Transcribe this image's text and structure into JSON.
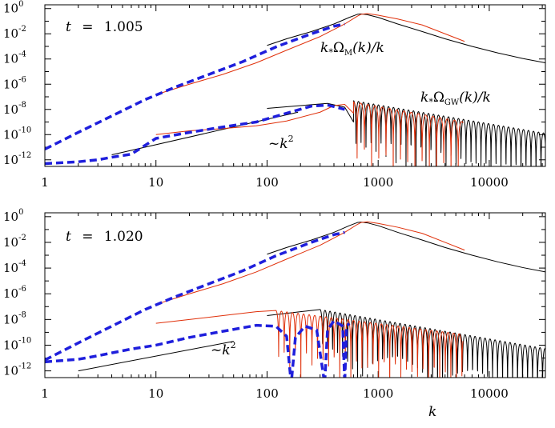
{
  "colors": {
    "black_curve": "#000000",
    "red_curve": "#e0300a",
    "blue_dashed": "#1f1fdc"
  },
  "chart_data": [
    {
      "type": "line",
      "scale": {
        "x": "log",
        "y": "log"
      },
      "xlim": [
        1,
        32000
      ],
      "ylim": [
        3e-13,
        2
      ],
      "x_ticks": [
        "1",
        "10",
        "100",
        "1000",
        "10000"
      ],
      "y_ticks": [
        {
          "base": "10",
          "exp": "0"
        },
        {
          "base": "10",
          "exp": "-2"
        },
        {
          "base": "10",
          "exp": "-4"
        },
        {
          "base": "10",
          "exp": "-6"
        },
        {
          "base": "10",
          "exp": "-8"
        },
        {
          "base": "10",
          "exp": "-10"
        },
        {
          "base": "10",
          "exp": "-12"
        }
      ],
      "time_label": {
        "var": "t",
        "eq": "=",
        "value": "1.005"
      },
      "annotations": {
        "magnetic": {
          "k": "k",
          "sub": "*",
          "omega": "Ω",
          "omega_sub": "M",
          "rest": "(k)/k"
        },
        "gw": {
          "k": "k",
          "sub": "*",
          "omega": "Ω",
          "omega_sub": "GW",
          "rest": "(k)/k"
        },
        "slope": {
          "tilde": "~",
          "k": "k",
          "exp": "2"
        }
      },
      "slope_line": {
        "x": [
          4,
          190
        ],
        "y": [
          2.5e-12,
          6e-09
        ]
      },
      "series": [
        {
          "role": "magnetic",
          "color": "black",
          "x": [
            100,
            150,
            250,
            400,
            550,
            650,
            700,
            800,
            1000,
            1500,
            2500,
            4000,
            7000,
            12000,
            20000,
            32000
          ],
          "y": [
            0.0012,
            0.004,
            0.015,
            0.06,
            0.2,
            0.35,
            0.38,
            0.33,
            0.2,
            0.06,
            0.015,
            0.004,
            0.001,
            0.0003,
            0.00011,
            5e-05
          ]
        },
        {
          "role": "magnetic",
          "color": "red",
          "x": [
            10,
            20,
            40,
            80,
            150,
            300,
            500,
            650,
            700,
            800,
            1000,
            1500,
            2500,
            4000,
            6000
          ],
          "y": [
            1.5e-07,
            1e-06,
            6e-06,
            5e-05,
            0.0005,
            0.006,
            0.06,
            0.25,
            0.35,
            0.4,
            0.3,
            0.15,
            0.05,
            0.01,
            0.0025
          ]
        },
        {
          "role": "magnetic",
          "color": "blue-dashed",
          "x": [
            1,
            2,
            4,
            8,
            15,
            30,
            60,
            120,
            250,
            400,
            500
          ],
          "y": [
            7e-12,
            1.5e-10,
            3e-09,
            6e-08,
            6e-07,
            6e-06,
            6e-05,
            0.0009,
            0.01,
            0.04,
            0.06
          ]
        },
        {
          "role": "gw",
          "color": "black",
          "x": [
            100,
            200,
            350,
            500,
            600
          ],
          "y": [
            1.2e-08,
            2e-08,
            3e-08,
            1.5e-08,
            1e-09
          ],
          "osc": {
            "k0": 600,
            "k1": 32000,
            "env_start": 5e-08,
            "env_slope": -1.5,
            "period_log": 0.045,
            "floor": 1e-14
          }
        },
        {
          "role": "gw",
          "color": "red",
          "x": [
            10,
            20,
            40,
            80,
            150,
            300,
            400,
            500,
            600
          ],
          "y": [
            1e-10,
            2e-10,
            3e-10,
            5e-10,
            1.2e-09,
            6e-09,
            2e-08,
            2.5e-08,
            5e-09
          ],
          "osc": {
            "k0": 600,
            "k1": 5800,
            "env_start": 4e-08,
            "env_slope": -1.6,
            "period_log": 0.065,
            "floor": 1e-14
          }
        },
        {
          "role": "gw",
          "color": "blue-dashed",
          "x": [
            1,
            2,
            3,
            4,
            6,
            10,
            20,
            40,
            80,
            150,
            250,
            350,
            420,
            500
          ],
          "y": [
            5e-13,
            7e-13,
            1e-12,
            1.6e-12,
            2.8e-12,
            5e-11,
            1.5e-10,
            4e-10,
            1e-09,
            5e-09,
            1.8e-08,
            2.2e-08,
            1.5e-08,
            1e-08
          ]
        }
      ]
    },
    {
      "type": "line",
      "scale": {
        "x": "log",
        "y": "log"
      },
      "xlim": [
        1,
        32000
      ],
      "ylim": [
        3e-13,
        2
      ],
      "x_ticks": [
        "1",
        "10",
        "100",
        "1000",
        "10000"
      ],
      "xlabel": "k",
      "y_ticks": [
        {
          "base": "10",
          "exp": "0"
        },
        {
          "base": "10",
          "exp": "-2"
        },
        {
          "base": "10",
          "exp": "-4"
        },
        {
          "base": "10",
          "exp": "-6"
        },
        {
          "base": "10",
          "exp": "-8"
        },
        {
          "base": "10",
          "exp": "-10"
        },
        {
          "base": "10",
          "exp": "-12"
        }
      ],
      "time_label": {
        "var": "t",
        "eq": "=",
        "value": "1.020"
      },
      "annotations": {
        "slope": {
          "tilde": "~",
          "k": "k",
          "exp": "2"
        }
      },
      "slope_line": {
        "x": [
          2,
          50
        ],
        "y": [
          1e-12,
          2e-10
        ]
      },
      "series": [
        {
          "role": "magnetic",
          "color": "black",
          "x": [
            100,
            150,
            250,
            400,
            550,
            650,
            700,
            800,
            1000,
            1500,
            2500,
            4000,
            7000,
            12000,
            20000,
            32000
          ],
          "y": [
            0.0012,
            0.004,
            0.015,
            0.06,
            0.2,
            0.35,
            0.38,
            0.33,
            0.2,
            0.06,
            0.015,
            0.004,
            0.001,
            0.0003,
            0.00011,
            5e-05
          ]
        },
        {
          "role": "magnetic",
          "color": "red",
          "x": [
            10,
            20,
            40,
            80,
            150,
            300,
            500,
            650,
            700,
            800,
            1000,
            1500,
            2500,
            4000,
            6000
          ],
          "y": [
            1.5e-07,
            1e-06,
            6e-06,
            5e-05,
            0.0005,
            0.006,
            0.06,
            0.25,
            0.35,
            0.4,
            0.3,
            0.15,
            0.05,
            0.01,
            0.0025
          ]
        },
        {
          "role": "magnetic",
          "color": "blue-dashed",
          "x": [
            1,
            2,
            4,
            8,
            15,
            30,
            60,
            120,
            250,
            400,
            500
          ],
          "y": [
            7e-12,
            1.5e-10,
            3e-09,
            6e-08,
            6e-07,
            6e-06,
            6e-05,
            0.0009,
            0.01,
            0.04,
            0.06
          ]
        },
        {
          "role": "gw",
          "color": "black",
          "x": [
            100,
            200,
            300
          ],
          "y": [
            2e-08,
            4e-08,
            6e-08
          ],
          "osc": {
            "k0": 300,
            "k1": 32000,
            "env_start": 6e-08,
            "env_slope": -1.5,
            "period_log": 0.045,
            "floor": 1e-14
          }
        },
        {
          "role": "gw",
          "color": "red",
          "x": [
            10,
            20,
            40,
            80,
            120
          ],
          "y": [
            5e-09,
            1e-08,
            2e-08,
            4e-08,
            5e-08
          ],
          "osc": {
            "k0": 120,
            "k1": 5800,
            "env_start": 5e-08,
            "env_slope": -1.1,
            "period_log": 0.05,
            "floor": 1e-14
          }
        },
        {
          "role": "gw",
          "color": "blue-dashed",
          "x": [
            1,
            2,
            3,
            4,
            6,
            10,
            20,
            40,
            80,
            120,
            150,
            165,
            180,
            220,
            280,
            330,
            350,
            400,
            480,
            500,
            520,
            550
          ],
          "y": [
            5e-12,
            8e-12,
            1.5e-11,
            2.5e-11,
            5e-11,
            1e-10,
            4e-10,
            1.2e-09,
            3.5e-09,
            3e-09,
            5e-10,
            1e-13,
            4e-10,
            3e-09,
            1.5e-09,
            1e-13,
            1.5e-09,
            8e-09,
            3e-09,
            1e-13,
            3e-09,
            5e-09
          ]
        }
      ]
    }
  ]
}
